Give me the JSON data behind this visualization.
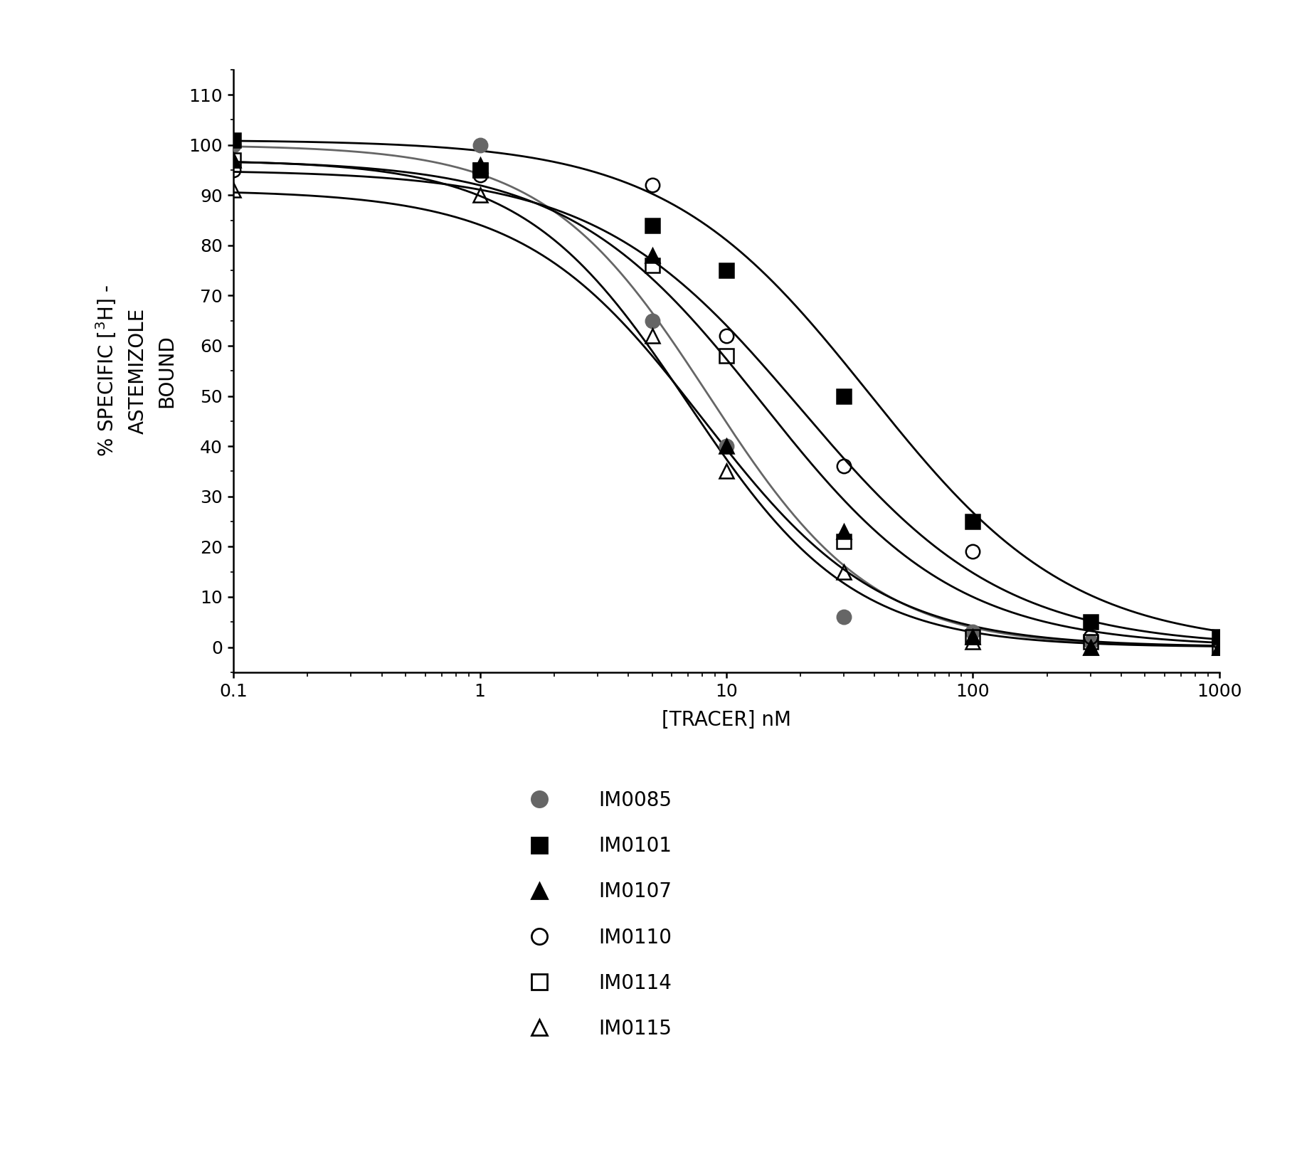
{
  "xlabel": "[TRACER] nM",
  "xlim": [
    0.1,
    1000
  ],
  "ylim": [
    -5,
    115
  ],
  "yticks": [
    0,
    10,
    20,
    30,
    40,
    50,
    60,
    70,
    80,
    90,
    100,
    110
  ],
  "series": [
    {
      "name": "IM0085",
      "color": "#666666",
      "marker": "o",
      "filled": true,
      "marker_size": 14,
      "ec50": 8.5,
      "top": 100,
      "bottom": 0,
      "hill": 1.3,
      "data_x": [
        0.1,
        1.0,
        5.0,
        10.0,
        30.0,
        100.0,
        300.0,
        1000.0
      ],
      "data_y": [
        100,
        100,
        65,
        40,
        6,
        3,
        1,
        1
      ]
    },
    {
      "name": "IM0101",
      "color": "#000000",
      "marker": "s",
      "filled": true,
      "marker_size": 14,
      "ec50": 38.0,
      "top": 101,
      "bottom": 0,
      "hill": 1.05,
      "data_x": [
        0.1,
        1.0,
        5.0,
        10.0,
        30.0,
        100.0,
        300.0,
        1000.0
      ],
      "data_y": [
        101,
        95,
        84,
        75,
        50,
        25,
        5,
        2
      ]
    },
    {
      "name": "IM0107",
      "color": "#000000",
      "marker": "^",
      "filled": true,
      "marker_size": 14,
      "ec50": 7.0,
      "top": 97,
      "bottom": 0,
      "hill": 1.3,
      "data_x": [
        0.1,
        1.0,
        5.0,
        10.0,
        30.0,
        100.0,
        300.0,
        1000.0
      ],
      "data_y": [
        97,
        96,
        78,
        40,
        23,
        2,
        0,
        0
      ]
    },
    {
      "name": "IM0110",
      "color": "#000000",
      "marker": "o",
      "filled": false,
      "marker_size": 14,
      "ec50": 20.0,
      "top": 95,
      "bottom": 0,
      "hill": 1.05,
      "data_x": [
        0.1,
        1.0,
        5.0,
        10.0,
        30.0,
        100.0,
        300.0,
        1000.0
      ],
      "data_y": [
        95,
        94,
        92,
        62,
        36,
        19,
        2,
        1
      ]
    },
    {
      "name": "IM0114",
      "color": "#000000",
      "marker": "s",
      "filled": false,
      "marker_size": 14,
      "ec50": 14.0,
      "top": 97,
      "bottom": 0,
      "hill": 1.1,
      "data_x": [
        0.1,
        1.0,
        5.0,
        10.0,
        30.0,
        100.0,
        300.0,
        1000.0
      ],
      "data_y": [
        97,
        95,
        76,
        58,
        21,
        2,
        1,
        0
      ]
    },
    {
      "name": "IM0115",
      "color": "#000000",
      "marker": "^",
      "filled": false,
      "marker_size": 14,
      "ec50": 8.0,
      "top": 91,
      "bottom": 0,
      "hill": 1.2,
      "data_x": [
        0.1,
        1.0,
        5.0,
        10.0,
        30.0,
        100.0,
        300.0,
        1000.0
      ],
      "data_y": [
        91,
        90,
        62,
        35,
        15,
        1,
        0,
        0
      ]
    }
  ],
  "legend_fontsize": 20,
  "axis_fontsize": 20,
  "tick_fontsize": 18,
  "ylabel_fontsize": 20,
  "background_color": "#ffffff",
  "line_width": 2.0
}
